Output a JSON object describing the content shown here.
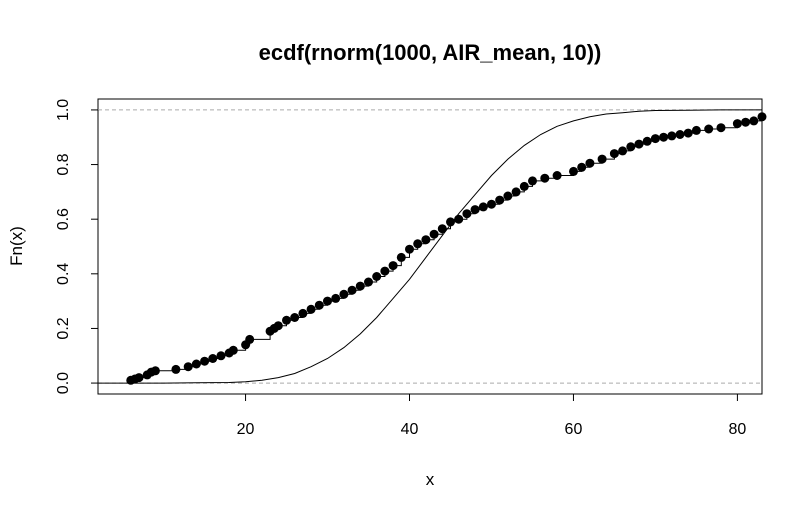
{
  "chart_data": {
    "type": "line",
    "title": "ecdf(rnorm(1000, AIR_mean, 10))",
    "xlabel": "x",
    "ylabel": "Fn(x)",
    "xlim": [
      2,
      83
    ],
    "ylim": [
      -0.04,
      1.04
    ],
    "x_ticks": [
      20,
      40,
      60,
      80
    ],
    "x_tick_labels": [
      "20",
      "40",
      "60",
      "80"
    ],
    "y_ticks": [
      0.0,
      0.2,
      0.4,
      0.6,
      0.8,
      1.0
    ],
    "y_tick_labels": [
      "0.0",
      "0.2",
      "0.4",
      "0.6",
      "0.8",
      "1.0"
    ],
    "reference_lines": [
      0,
      1
    ],
    "grid": false,
    "legend": "none",
    "series": [
      {
        "style": "step-points",
        "x": [
          6.0,
          6.5,
          7.0,
          8.0,
          8.5,
          9.0,
          11.5,
          13.0,
          14.0,
          15.0,
          16.0,
          17.0,
          18.0,
          18.5,
          20.0,
          20.5,
          23.0,
          23.5,
          24.0,
          25.0,
          26.0,
          27.0,
          28.0,
          29.0,
          30.0,
          31.0,
          32.0,
          33.0,
          34.0,
          35.0,
          36.0,
          37.0,
          38.0,
          39.0,
          40.0,
          41.0,
          42.0,
          43.0,
          44.0,
          45.0,
          46.0,
          47.0,
          48.0,
          49.0,
          50.0,
          51.0,
          52.0,
          53.0,
          54.0,
          55.0,
          56.5,
          58.0,
          60.0,
          61.0,
          62.0,
          63.5,
          65.0,
          66.0,
          67.0,
          68.0,
          69.0,
          70.0,
          71.0,
          72.0,
          73.0,
          74.0,
          75.0,
          76.5,
          78.0,
          80.0,
          81.0,
          82.0,
          83.0
        ],
        "y": [
          0.01,
          0.015,
          0.02,
          0.03,
          0.04,
          0.045,
          0.05,
          0.06,
          0.07,
          0.08,
          0.09,
          0.1,
          0.11,
          0.12,
          0.14,
          0.16,
          0.19,
          0.2,
          0.21,
          0.23,
          0.24,
          0.255,
          0.27,
          0.285,
          0.3,
          0.31,
          0.325,
          0.34,
          0.355,
          0.37,
          0.39,
          0.41,
          0.43,
          0.46,
          0.49,
          0.51,
          0.525,
          0.545,
          0.565,
          0.59,
          0.6,
          0.62,
          0.635,
          0.645,
          0.655,
          0.67,
          0.685,
          0.7,
          0.72,
          0.74,
          0.75,
          0.76,
          0.775,
          0.79,
          0.805,
          0.82,
          0.84,
          0.85,
          0.865,
          0.875,
          0.885,
          0.895,
          0.9,
          0.905,
          0.91,
          0.915,
          0.925,
          0.93,
          0.935,
          0.95,
          0.955,
          0.96,
          0.975
        ]
      },
      {
        "style": "curve",
        "x": [
          6.0,
          10.0,
          14.0,
          18.0,
          20.0,
          22.0,
          24.0,
          26.0,
          28.0,
          30.0,
          32.0,
          34.0,
          36.0,
          38.0,
          40.0,
          42.0,
          44.0,
          46.0,
          48.0,
          50.0,
          52.0,
          54.0,
          56.0,
          58.0,
          60.0,
          62.0,
          64.0,
          66.0,
          68.0,
          70.0,
          74.0,
          78.0,
          83.0
        ],
        "y": [
          0.0,
          0.0,
          0.001,
          0.002,
          0.005,
          0.01,
          0.02,
          0.035,
          0.06,
          0.09,
          0.13,
          0.18,
          0.24,
          0.31,
          0.38,
          0.46,
          0.54,
          0.62,
          0.69,
          0.76,
          0.82,
          0.87,
          0.91,
          0.94,
          0.96,
          0.975,
          0.985,
          0.99,
          0.995,
          0.998,
          0.999,
          1.0,
          1.0
        ]
      }
    ]
  }
}
